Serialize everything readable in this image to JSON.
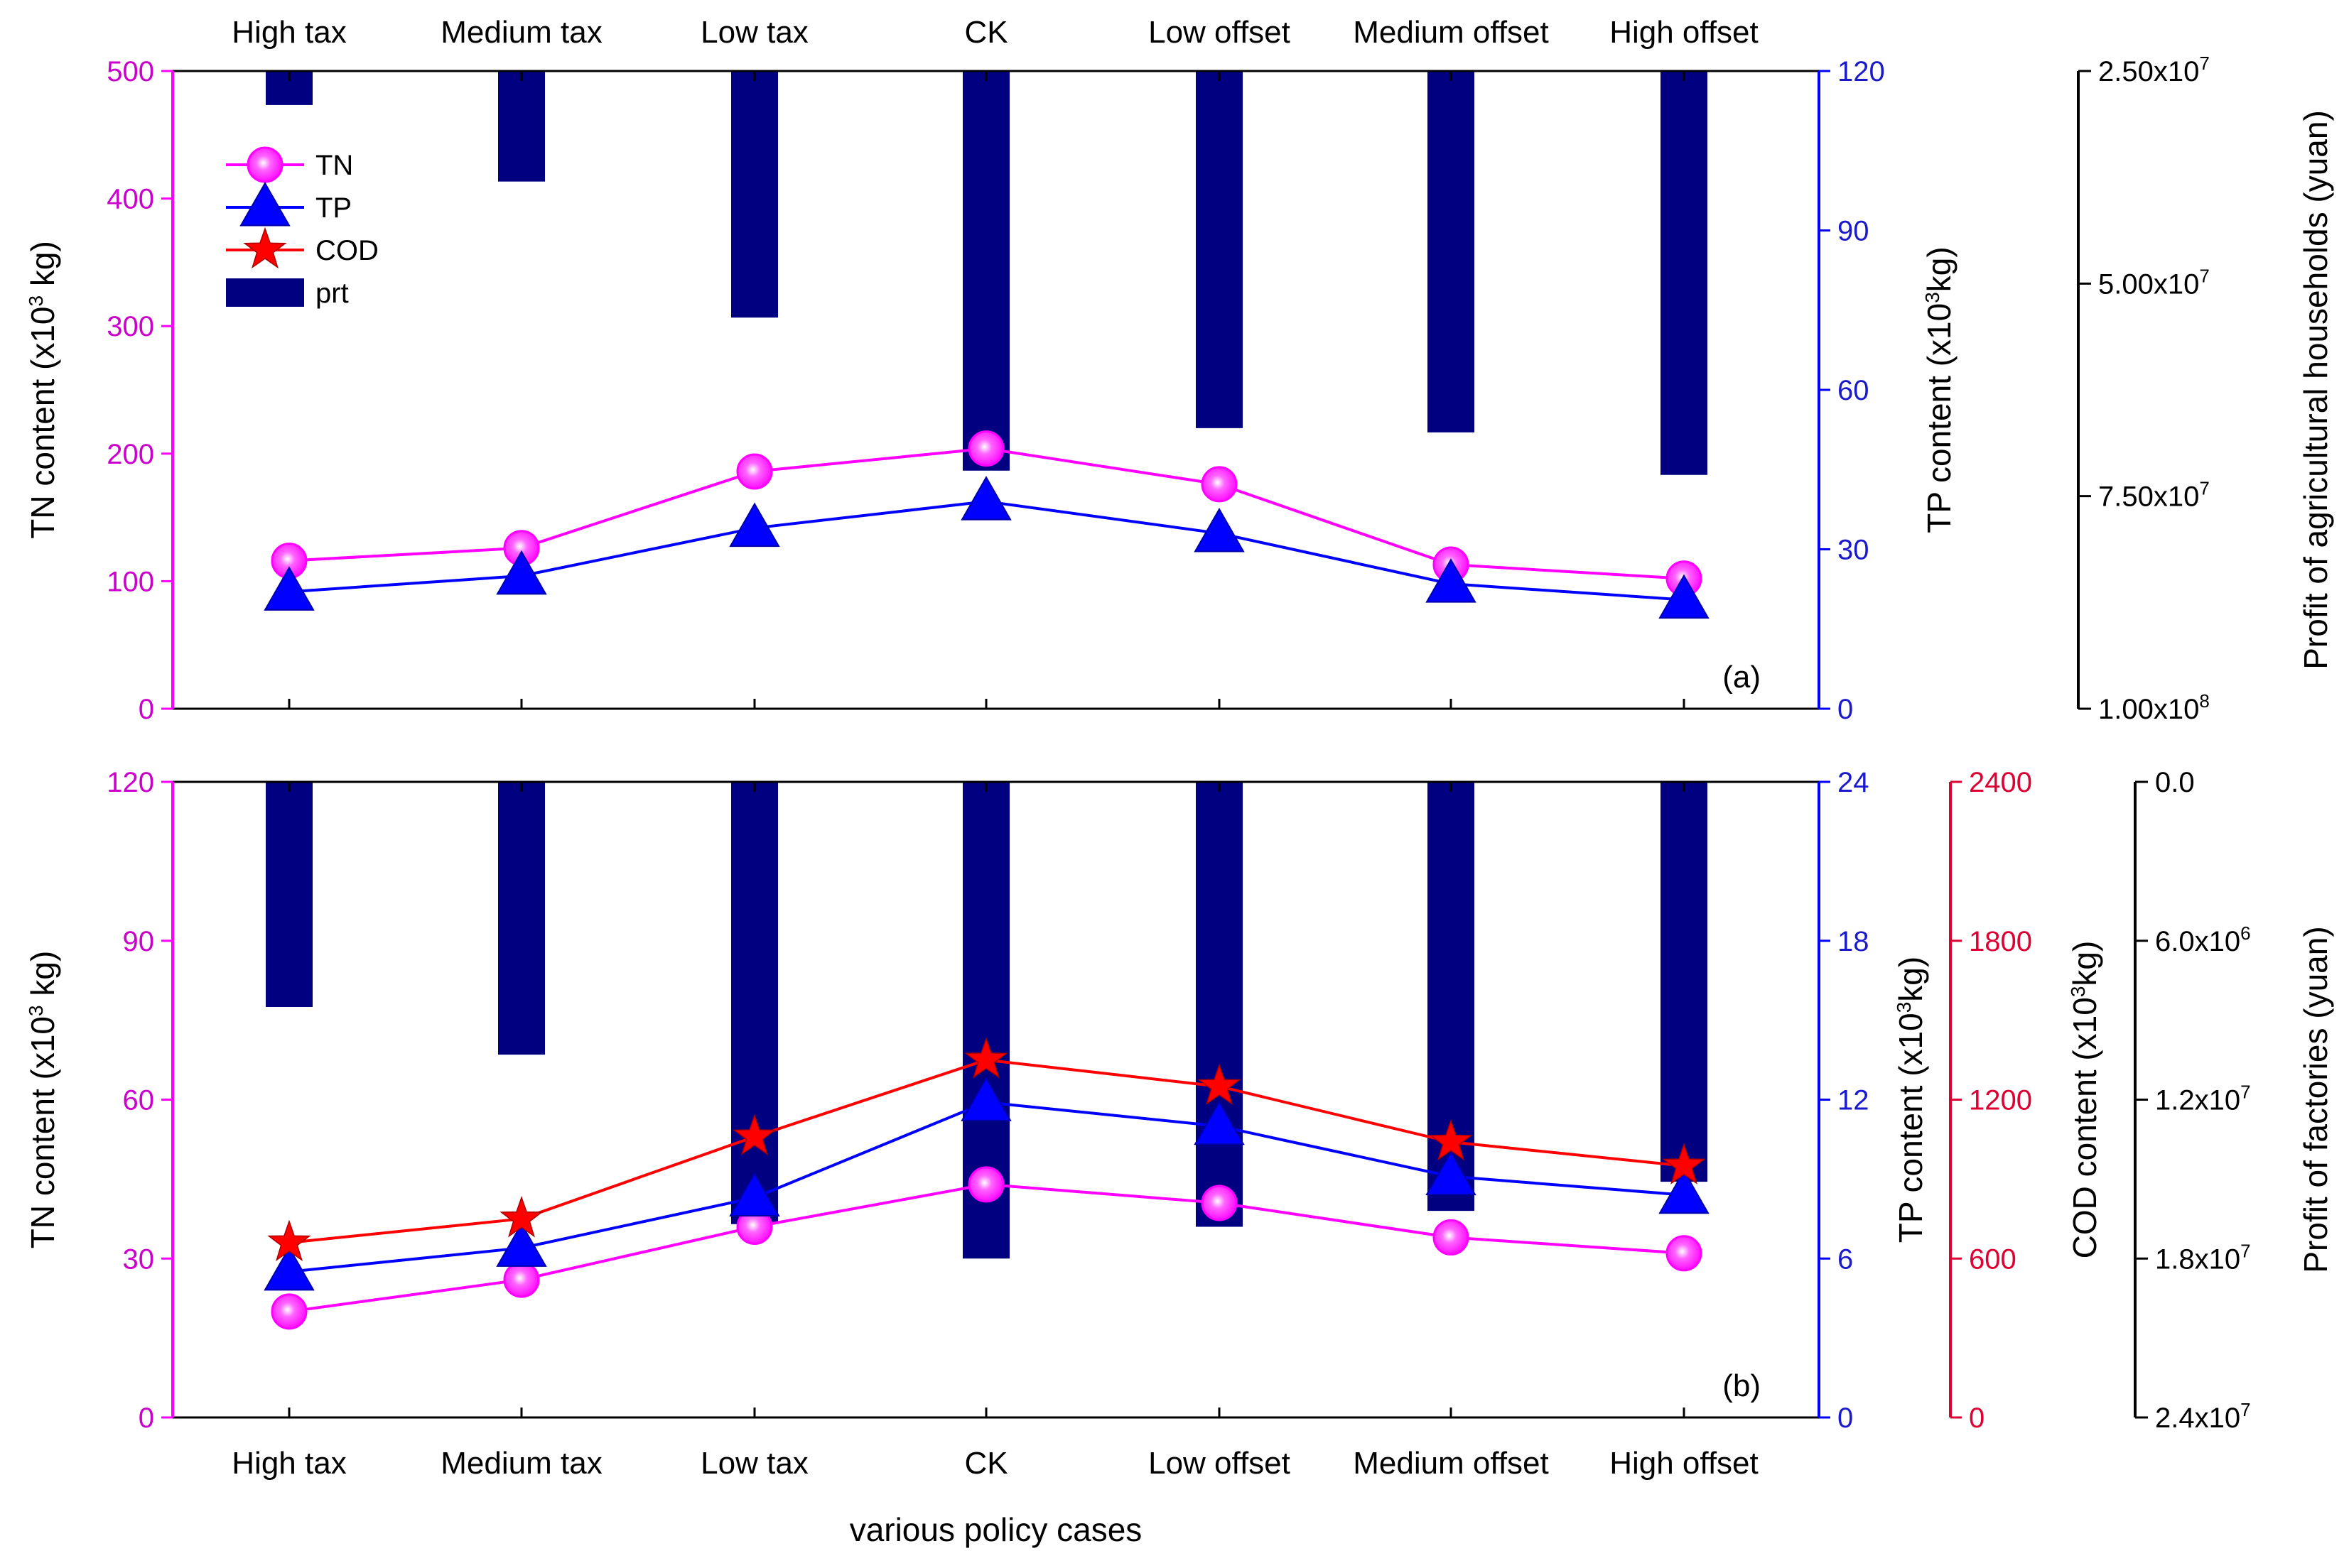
{
  "colors": {
    "tn": "#ff00ff",
    "tn_axis": "#cc00cc",
    "tp": "#0000ff",
    "tp_axis": "#1a1acc",
    "cod": "#ff0000",
    "cod_axis": "#dd0033",
    "prt": "#000080",
    "profit_axis": "#000000"
  },
  "chart_data": [
    {
      "type": "line+bar",
      "panel_label": "(a)",
      "categories": [
        "High tax",
        "Medium tax",
        "Low tax",
        "CK",
        "Low offset",
        "Medium offset",
        "High offset"
      ],
      "legend": {
        "placement": "top-left",
        "entries": [
          "TN",
          "TP",
          "COD",
          "prt"
        ]
      },
      "axes": {
        "tn": {
          "label_main": "TN content (x10",
          "label_sup": "3",
          "label_end": " kg)",
          "range": [
            0,
            500
          ],
          "ticks": [
            "0",
            "100",
            "200",
            "300",
            "400",
            "500"
          ]
        },
        "tp": {
          "label_main": "TP content (x10",
          "label_sup": "3",
          "label_end": "kg)",
          "range": [
            0,
            120
          ],
          "ticks": [
            "0",
            "30",
            "60",
            "90",
            "120"
          ]
        },
        "profit": {
          "label": "Profit of agricultural households (yuan)",
          "range_top_to_bottom": [
            25000000,
            100000000
          ],
          "reversed": true,
          "ticks": [
            "2.50x10",
            "5.00x10",
            "7.50x10",
            "1.00x10"
          ],
          "tick_exps": [
            "7",
            "7",
            "7",
            "8"
          ]
        }
      },
      "series": [
        {
          "name": "TN",
          "axis": "tn",
          "marker": "circle",
          "values": [
            116,
            126,
            186,
            204,
            176,
            113,
            102
          ]
        },
        {
          "name": "TP",
          "axis": "tp",
          "marker": "triangle",
          "values": [
            22,
            25,
            34,
            39,
            33,
            23.5,
            20.5
          ]
        },
        {
          "name": "prt",
          "axis": "profit",
          "kind": "bar",
          "values": [
            29000000,
            38000000,
            54000000,
            72000000,
            67000000,
            67500000,
            72500000
          ]
        }
      ]
    },
    {
      "type": "line+bar",
      "panel_label": "(b)",
      "categories": [
        "High tax",
        "Medium tax",
        "Low tax",
        "CK",
        "Low offset",
        "Medium offset",
        "High offset"
      ],
      "xlabel": "various policy cases",
      "axes": {
        "tn": {
          "label_main": "TN content (x10",
          "label_sup": "3",
          "label_end": " kg)",
          "range": [
            0,
            120
          ],
          "ticks": [
            "0",
            "30",
            "60",
            "90",
            "120"
          ]
        },
        "tp": {
          "label_main": "TP content (x10",
          "label_sup": "3",
          "label_end": "kg)",
          "range": [
            0,
            24
          ],
          "ticks": [
            "0",
            "6",
            "12",
            "18",
            "24"
          ]
        },
        "cod": {
          "label_main": "COD content (x10",
          "label_sup": "3",
          "label_end": "kg)",
          "range": [
            0,
            2400
          ],
          "ticks": [
            "0",
            "600",
            "1200",
            "1800",
            "2400"
          ]
        },
        "profit": {
          "label": "Profit of factories (yuan)",
          "range_top_to_bottom": [
            0,
            24000000
          ],
          "reversed": true,
          "ticks": [
            "0.0",
            "6.0x10",
            "1.2x10",
            "1.8x10",
            "2.4x10"
          ],
          "tick_exps": [
            "",
            "6",
            "7",
            "7",
            "7"
          ]
        }
      },
      "series": [
        {
          "name": "TN",
          "axis": "tn",
          "marker": "circle",
          "values": [
            20,
            26,
            36,
            44,
            40.5,
            34,
            31
          ]
        },
        {
          "name": "TP",
          "axis": "tp",
          "marker": "triangle",
          "values": [
            5.5,
            6.4,
            8.3,
            11.9,
            11,
            9.1,
            8.4
          ]
        },
        {
          "name": "COD",
          "axis": "cod",
          "marker": "star",
          "values": [
            660,
            750,
            1060,
            1350,
            1250,
            1040,
            950
          ]
        },
        {
          "name": "prt",
          "axis": "profit",
          "kind": "bar",
          "values": [
            8500000,
            10300000,
            16700000,
            18000000,
            16800000,
            16200000,
            15100000
          ]
        }
      ]
    }
  ]
}
